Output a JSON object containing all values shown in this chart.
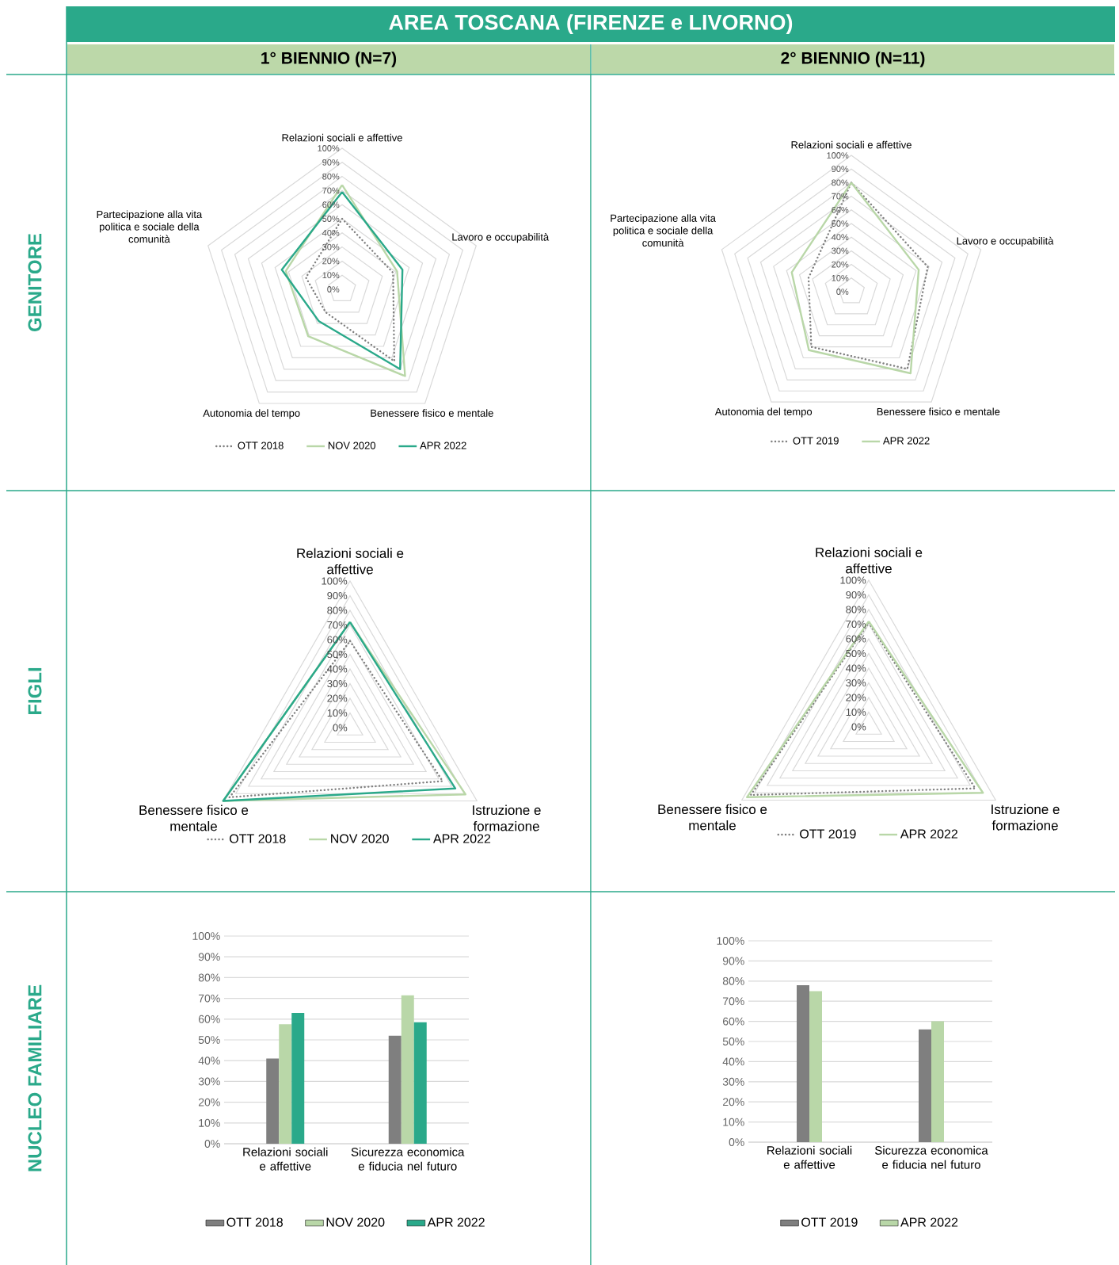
{
  "chart_data": [
    {
      "type": "radar",
      "title": "AREA TOSCANA (FIRENZE e LIVORNO)",
      "subtitle": "1° BIENNIO (N=7)",
      "annotations": [
        "GENITORE"
      ],
      "categories": [
        "Relazioni sociali e affettive",
        "Lavoro e occupabilità",
        "Benessere fisico e mentale",
        "Autonomia del tempo",
        "Partecipazione alla vita politica e sociale della comunità"
      ],
      "series": [
        {
          "name": "OTT 2018",
          "color": "#7f7f7f",
          "line_style": "dotted",
          "values": [
            50,
            38,
            63,
            20,
            27
          ]
        },
        {
          "name": "NOV 2020",
          "color": "#b9d7a8",
          "line_style": "solid",
          "values": [
            74,
            41,
            76,
            41,
            42
          ]
        },
        {
          "name": "APR 2022",
          "color": "#2aa98a",
          "line_style": "solid",
          "values": [
            69,
            45,
            70,
            28,
            45
          ]
        }
      ],
      "ylim": [
        0,
        100
      ],
      "yticks": [
        {
          "value": 0,
          "label": "0%"
        },
        {
          "value": 10,
          "label": "10%"
        },
        {
          "value": 20,
          "label": "20%"
        },
        {
          "value": 30,
          "label": "30%"
        },
        {
          "value": 40,
          "label": "40%"
        },
        {
          "value": 50,
          "label": "50%"
        },
        {
          "value": 60,
          "label": "60%"
        },
        {
          "value": 70,
          "label": "70%"
        },
        {
          "value": 80,
          "label": "80%"
        },
        {
          "value": 90,
          "label": "90%"
        },
        {
          "value": 100,
          "label": "100%"
        }
      ],
      "grid": true,
      "legend": "bottom"
    },
    {
      "type": "radar",
      "subtitle": "2° BIENNIO (N=11)",
      "categories": [
        "Relazioni sociali e affettive",
        "Lavoro e occupabilità",
        "Benessere fisico e mentale",
        "Autonomia del tempo",
        "Partecipazione alla vita politica e sociale della comunità"
      ],
      "series": [
        {
          "name": "OTT 2019",
          "color": "#7f7f7f",
          "line_style": "dotted",
          "values": [
            80,
            59,
            70,
            50,
            33
          ]
        },
        {
          "name": "APR 2022",
          "color": "#b9d7a8",
          "line_style": "solid",
          "values": [
            80,
            52,
            74,
            53,
            46
          ]
        }
      ],
      "ylim": [
        0,
        100
      ],
      "yticks": [
        {
          "value": 0,
          "label": "0%"
        },
        {
          "value": 10,
          "label": "10%"
        },
        {
          "value": 20,
          "label": "20%"
        },
        {
          "value": 30,
          "label": "30%"
        },
        {
          "value": 40,
          "label": "40%"
        },
        {
          "value": 50,
          "label": "50%"
        },
        {
          "value": 60,
          "label": "60%"
        },
        {
          "value": 70,
          "label": "70%"
        },
        {
          "value": 80,
          "label": "80%"
        },
        {
          "value": 90,
          "label": "90%"
        },
        {
          "value": 100,
          "label": "100%"
        }
      ],
      "grid": true,
      "legend": "bottom"
    },
    {
      "type": "radar",
      "annotations": [
        "FIGLI"
      ],
      "categories": [
        "Relazioni sociali e affettive",
        "Istruzione e formazione",
        "Benessere fisico e mentale"
      ],
      "series": [
        {
          "name": "OTT 2018",
          "color": "#7f7f7f",
          "line_style": "dotted",
          "values": [
            59,
            73,
            95
          ]
        },
        {
          "name": "NOV 2020",
          "color": "#b9d7a8",
          "line_style": "solid",
          "values": [
            72,
            91,
            100
          ]
        },
        {
          "name": "APR 2022",
          "color": "#2aa98a",
          "line_style": "solid",
          "values": [
            72,
            83,
            100
          ]
        }
      ],
      "ylim": [
        0,
        100
      ],
      "yticks": [
        {
          "value": 0,
          "label": "0%"
        },
        {
          "value": 10,
          "label": "10%"
        },
        {
          "value": 20,
          "label": "20%"
        },
        {
          "value": 30,
          "label": "30%"
        },
        {
          "value": 40,
          "label": "40%"
        },
        {
          "value": 50,
          "label": "50%"
        },
        {
          "value": 60,
          "label": "60%"
        },
        {
          "value": 70,
          "label": "70%"
        },
        {
          "value": 80,
          "label": "80%"
        },
        {
          "value": 90,
          "label": "90%"
        },
        {
          "value": 100,
          "label": "100%"
        }
      ],
      "grid": true,
      "legend": "bottom"
    },
    {
      "type": "radar",
      "categories": [
        "Relazioni sociali e affettive",
        "Istruzione e formazione",
        "Benessere fisico e mentale"
      ],
      "series": [
        {
          "name": "OTT 2019",
          "color": "#7f7f7f",
          "line_style": "dotted",
          "values": [
            71,
            84,
            93
          ]
        },
        {
          "name": "APR 2022",
          "color": "#b9d7a8",
          "line_style": "solid",
          "values": [
            72,
            90,
            96
          ]
        }
      ],
      "ylim": [
        0,
        100
      ],
      "yticks": [
        {
          "value": 0,
          "label": "0%"
        },
        {
          "value": 10,
          "label": "10%"
        },
        {
          "value": 20,
          "label": "20%"
        },
        {
          "value": 30,
          "label": "30%"
        },
        {
          "value": 40,
          "label": "40%"
        },
        {
          "value": 50,
          "label": "50%"
        },
        {
          "value": 60,
          "label": "60%"
        },
        {
          "value": 70,
          "label": "70%"
        },
        {
          "value": 80,
          "label": "80%"
        },
        {
          "value": 90,
          "label": "90%"
        },
        {
          "value": 100,
          "label": "100%"
        }
      ],
      "grid": true,
      "legend": "bottom"
    },
    {
      "type": "bar",
      "annotations": [
        "NUCLEO FAMILIARE"
      ],
      "categories": [
        "Relazioni sociali e affettive",
        "Sicurezza economica e fiducia nel futuro"
      ],
      "series": [
        {
          "name": "OTT 2018",
          "color": "#7f7f7f",
          "values": [
            41,
            52
          ]
        },
        {
          "name": "NOV 2020",
          "color": "#b9d7a8",
          "values": [
            57.5,
            71.5
          ]
        },
        {
          "name": "APR 2022",
          "color": "#2aa98a",
          "values": [
            63,
            58.5
          ]
        }
      ],
      "ylim": [
        0,
        100
      ],
      "yticks": [
        {
          "value": 0,
          "label": "0%"
        },
        {
          "value": 10,
          "label": "10%"
        },
        {
          "value": 20,
          "label": "20%"
        },
        {
          "value": 30,
          "label": "30%"
        },
        {
          "value": 40,
          "label": "40%"
        },
        {
          "value": 50,
          "label": "50%"
        },
        {
          "value": 60,
          "label": "60%"
        },
        {
          "value": 70,
          "label": "70%"
        },
        {
          "value": 80,
          "label": "80%"
        },
        {
          "value": 90,
          "label": "90%"
        },
        {
          "value": 100,
          "label": "100%"
        }
      ],
      "grid": "y",
      "legend": "bottom"
    },
    {
      "type": "bar",
      "categories": [
        "Relazioni sociali e affettive",
        "Sicurezza economica e fiducia nel futuro"
      ],
      "series": [
        {
          "name": "OTT 2019",
          "color": "#7f7f7f",
          "values": [
            78,
            56
          ]
        },
        {
          "name": "APR 2022",
          "color": "#b9d7a8",
          "values": [
            75,
            60
          ]
        }
      ],
      "ylim": [
        0,
        100
      ],
      "yticks": [
        {
          "value": 0,
          "label": "0%"
        },
        {
          "value": 10,
          "label": "10%"
        },
        {
          "value": 20,
          "label": "20%"
        },
        {
          "value": 30,
          "label": "30%"
        },
        {
          "value": 40,
          "label": "40%"
        },
        {
          "value": 50,
          "label": "50%"
        },
        {
          "value": 60,
          "label": "60%"
        },
        {
          "value": 70,
          "label": "70%"
        },
        {
          "value": 80,
          "label": "80%"
        },
        {
          "value": 90,
          "label": "90%"
        },
        {
          "value": 100,
          "label": "100%"
        }
      ],
      "grid": "y",
      "legend": "bottom"
    }
  ]
}
